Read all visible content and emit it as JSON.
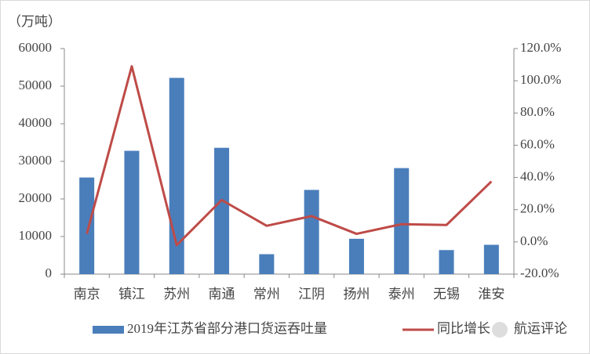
{
  "chart_data": {
    "type": "bar-line",
    "y_unit": "（万吨）",
    "categories": [
      "南京",
      "镇江",
      "苏州",
      "南通",
      "常州",
      "江阴",
      "扬州",
      "泰州",
      "无锡",
      "淮安"
    ],
    "series": [
      {
        "name": "2019年江苏省部分港口货运吞吐量",
        "type": "bar",
        "color": "#4a7ebb",
        "values": [
          25700,
          32800,
          52200,
          33600,
          5300,
          22400,
          9400,
          28200,
          6400,
          7800
        ]
      },
      {
        "name": "同比增长",
        "type": "line",
        "axis": "y2",
        "color": "#be4b48",
        "values": [
          5,
          109,
          -2,
          26,
          10,
          16,
          5,
          11,
          10.5,
          37.5
        ]
      }
    ],
    "ylim": [
      0,
      60000
    ],
    "yticks": [
      0,
      10000,
      20000,
      30000,
      40000,
      50000,
      60000
    ],
    "y2lim": [
      -20,
      120
    ],
    "y2ticks": [
      {
        "value": -20,
        "label": "-20.0%"
      },
      {
        "value": 0,
        "label": "0.0%"
      },
      {
        "value": 20,
        "label": "20.0%"
      },
      {
        "value": 40,
        "label": "40.0%"
      },
      {
        "value": 60,
        "label": "60.0%"
      },
      {
        "value": 80,
        "label": "80.0%"
      },
      {
        "value": 100,
        "label": "100.0%"
      },
      {
        "value": 120,
        "label": "120.0%"
      }
    ],
    "watermark": "航运评论"
  }
}
